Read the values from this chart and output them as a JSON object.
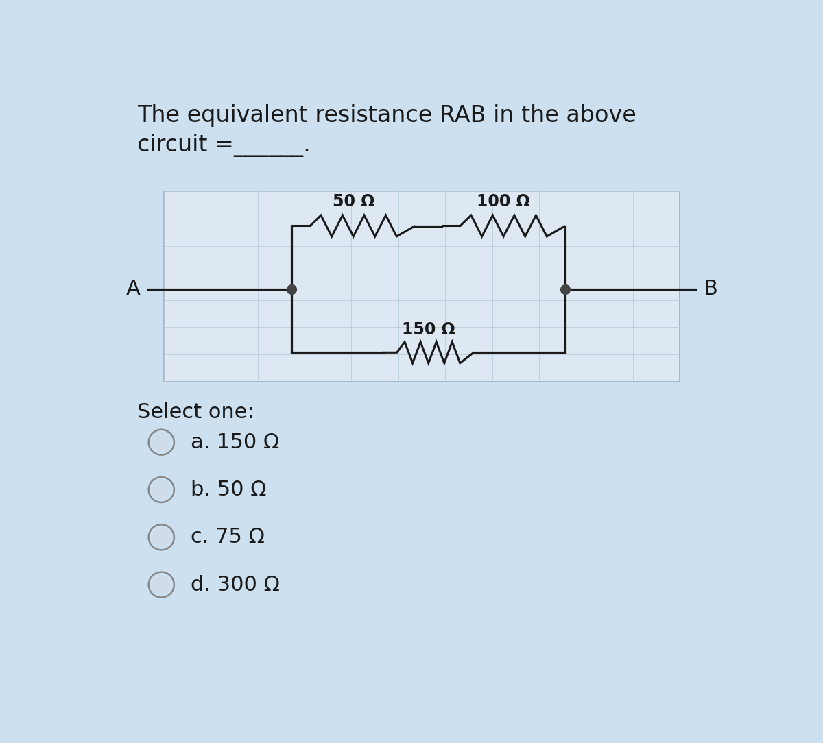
{
  "title_line1": "The equivalent resistance RAB in the above",
  "title_line2": "circuit =______.",
  "bg_color": "#cce0f0",
  "circuit_bg": "#dde8f2",
  "grid_color": "#b8cad8",
  "wire_color": "#1a1a1a",
  "resistor_color": "#1a1a1a",
  "node_color": "#555555",
  "label_50": "50 Ω",
  "label_100": "100 Ω",
  "label_150": "150 Ω",
  "label_A": "A",
  "label_B": "B",
  "select_one": "Select one:",
  "options": [
    "a. 150 Ω",
    "b. 50 Ω",
    "c. 75 Ω",
    "d. 300 Ω"
  ],
  "title_fontsize": 24,
  "label_fontsize": 17,
  "option_fontsize": 22,
  "select_fontsize": 22,
  "ab_fontsize": 22
}
